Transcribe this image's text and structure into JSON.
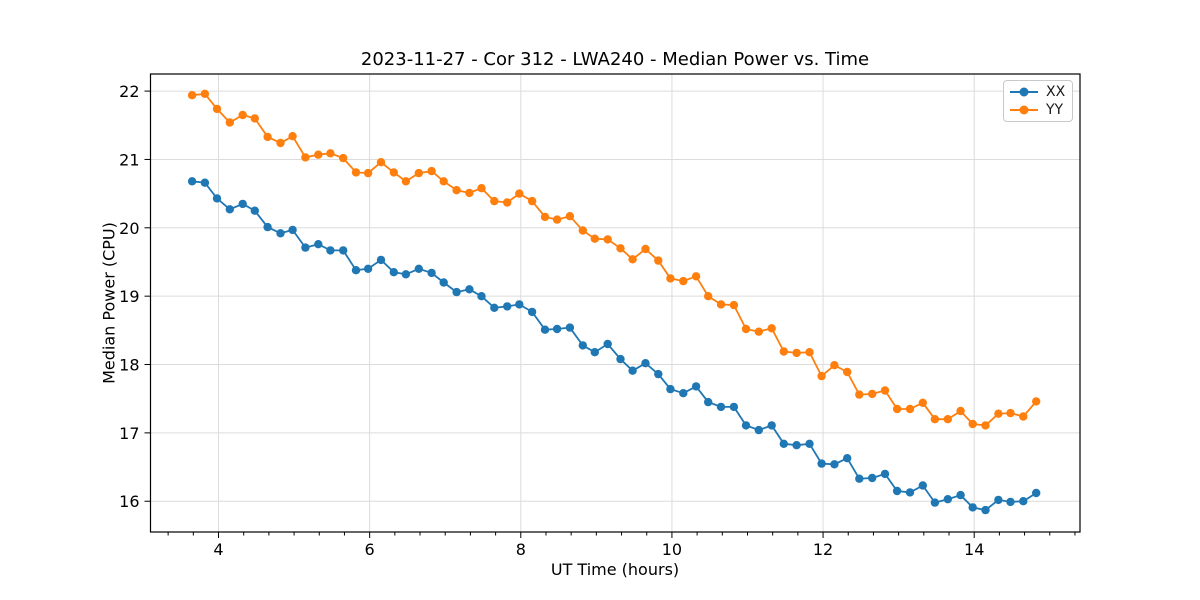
{
  "chart_data": {
    "type": "line",
    "title": "2023-11-27 - Cor 312 - LWA240 - Median Power vs. Time",
    "xlabel": "UT Time (hours)",
    "ylabel": "Median Power (CPU)",
    "xlim": [
      3.1,
      15.4
    ],
    "ylim": [
      15.55,
      22.25
    ],
    "x_ticks": [
      4,
      6,
      8,
      10,
      12,
      14
    ],
    "y_ticks": [
      16,
      17,
      18,
      19,
      20,
      21,
      22
    ],
    "x_minor_tick_step": 0.33333,
    "grid": true,
    "grid_color": "#dcdcdc",
    "background": "#ffffff",
    "legend_position": "upper right",
    "marker": "circle",
    "x": [
      3.65,
      3.82,
      3.98,
      4.15,
      4.32,
      4.48,
      4.65,
      4.82,
      4.98,
      5.15,
      5.32,
      5.48,
      5.65,
      5.82,
      5.98,
      6.15,
      6.32,
      6.48,
      6.65,
      6.82,
      6.98,
      7.15,
      7.32,
      7.48,
      7.65,
      7.82,
      7.98,
      8.15,
      8.32,
      8.48,
      8.65,
      8.82,
      8.98,
      9.15,
      9.32,
      9.48,
      9.65,
      9.82,
      9.98,
      10.15,
      10.32,
      10.48,
      10.65,
      10.82,
      10.98,
      11.15,
      11.32,
      11.48,
      11.65,
      11.82,
      11.98,
      12.15,
      12.32,
      12.48,
      12.65,
      12.82,
      12.98,
      13.15,
      13.32,
      13.48,
      13.65,
      13.82,
      13.98,
      14.15,
      14.32,
      14.48,
      14.65,
      14.82
    ],
    "series": [
      {
        "name": "XX",
        "color": "#1f77b4",
        "values": [
          20.68,
          20.66,
          20.43,
          20.27,
          20.35,
          20.25,
          20.01,
          19.92,
          19.97,
          19.71,
          19.76,
          19.67,
          19.67,
          19.38,
          19.4,
          19.53,
          19.35,
          19.32,
          19.4,
          19.34,
          19.2,
          19.06,
          19.1,
          19.0,
          18.83,
          18.85,
          18.88,
          18.77,
          18.51,
          18.52,
          18.54,
          18.28,
          18.18,
          18.3,
          18.08,
          17.91,
          18.02,
          17.86,
          17.64,
          17.58,
          17.68,
          17.45,
          17.38,
          17.38,
          17.11,
          17.04,
          17.11,
          16.84,
          16.82,
          16.84,
          16.55,
          16.54,
          16.63,
          16.33,
          16.34,
          16.4,
          16.15,
          16.13,
          16.23,
          15.98,
          16.03,
          16.09,
          15.91,
          15.87,
          16.02,
          15.99,
          16.0,
          16.12
        ]
      },
      {
        "name": "YY",
        "color": "#ff7f0e",
        "values": [
          21.94,
          21.96,
          21.74,
          21.54,
          21.65,
          21.6,
          21.33,
          21.24,
          21.34,
          21.03,
          21.07,
          21.09,
          21.02,
          20.81,
          20.8,
          20.96,
          20.81,
          20.68,
          20.8,
          20.83,
          20.68,
          20.55,
          20.51,
          20.58,
          20.39,
          20.37,
          20.5,
          20.39,
          20.16,
          20.12,
          20.17,
          19.96,
          19.84,
          19.83,
          19.7,
          19.54,
          19.69,
          19.52,
          19.26,
          19.22,
          19.29,
          19.0,
          18.88,
          18.87,
          18.52,
          18.48,
          18.53,
          18.19,
          18.17,
          18.18,
          17.83,
          17.99,
          17.89,
          17.56,
          17.57,
          17.62,
          17.35,
          17.35,
          17.44,
          17.2,
          17.2,
          17.32,
          17.13,
          17.11,
          17.28,
          17.29,
          17.24,
          17.46
        ]
      }
    ]
  }
}
